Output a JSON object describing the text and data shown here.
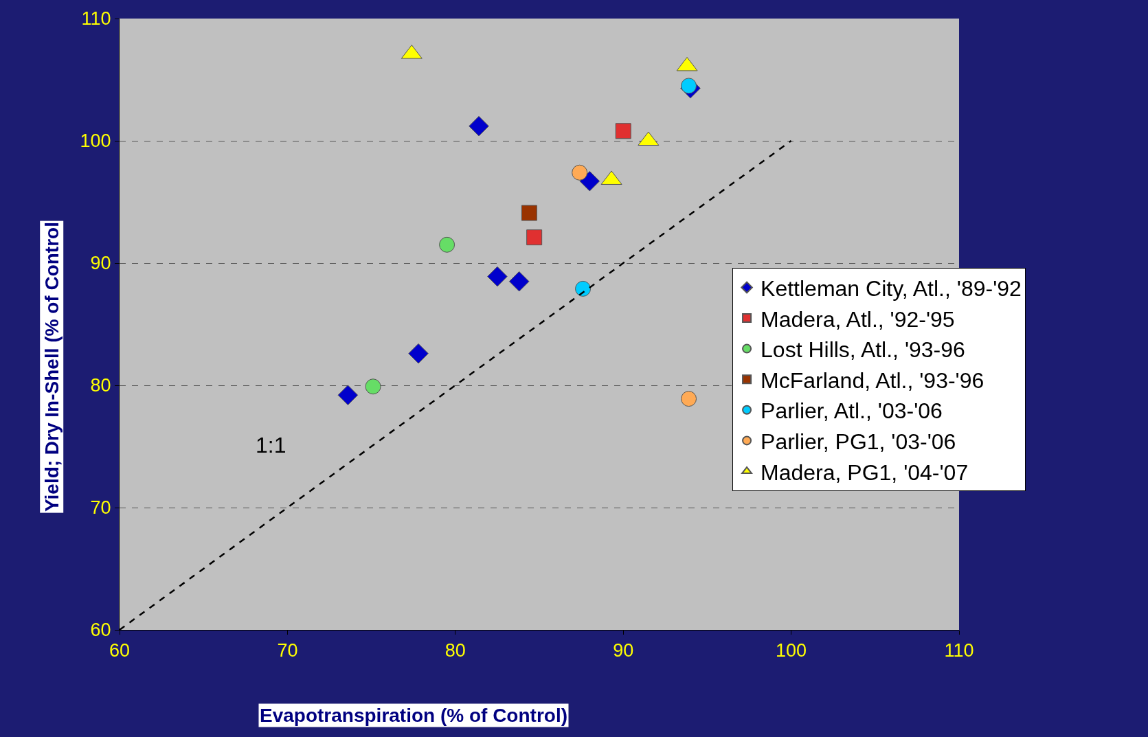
{
  "chart_data": {
    "type": "scatter",
    "xlabel": "Evapotranspiration (% of Control)",
    "ylabel": "Yield; Dry In-Shell (% of Control",
    "xlim": [
      60,
      110
    ],
    "ylim": [
      60,
      110
    ],
    "xticks": [
      60,
      70,
      80,
      90,
      100,
      110
    ],
    "yticks": [
      60,
      70,
      80,
      90,
      100,
      110
    ],
    "grid": "y",
    "legend": "right",
    "annotations": [
      "1:1"
    ],
    "series": [
      {
        "name": "Kettleman City, Atl., '89-'92",
        "color": "#0000cc",
        "marker": "diamond",
        "x": [
          73.6,
          77.8,
          81.4,
          82.5,
          83.8,
          88.0,
          94.0
        ],
        "values": [
          79.2,
          82.6,
          101.2,
          88.9,
          88.5,
          96.7,
          104.3
        ]
      },
      {
        "name": "Madera, Atl., '92-'95",
        "color": "#e03030",
        "marker": "square",
        "x": [
          90.0,
          84.7
        ],
        "values": [
          100.8,
          92.1
        ]
      },
      {
        "name": "Lost Hills, Atl., '93-96",
        "color": "#66dd66",
        "marker": "circle",
        "x": [
          79.5,
          75.1
        ],
        "values": [
          91.5,
          79.9
        ]
      },
      {
        "name": "McFarland, Atl., '93-'96",
        "color": "#993300",
        "marker": "square",
        "x": [
          84.4
        ],
        "values": [
          94.1
        ]
      },
      {
        "name": "Parlier, Atl., '03-'06",
        "color": "#00ccff",
        "marker": "circle",
        "x": [
          93.9,
          87.6
        ],
        "values": [
          104.5,
          87.9
        ]
      },
      {
        "name": "Parlier, PG1, '03-'06",
        "color": "#ffaa55",
        "marker": "circle",
        "x": [
          87.4,
          93.9
        ],
        "values": [
          97.4,
          78.9
        ]
      },
      {
        "name": "Madera, PG1, '04-'07",
        "color": "#ffff00",
        "marker": "triangle",
        "x": [
          77.4,
          93.8,
          91.5,
          89.3
        ],
        "values": [
          107.1,
          106.1,
          100.0,
          96.8
        ]
      },
      {
        "type": "line",
        "color": "#000000",
        "line_style": "dashed",
        "marker": "none",
        "x": [
          60,
          100
        ],
        "values": [
          60,
          100
        ]
      }
    ]
  }
}
